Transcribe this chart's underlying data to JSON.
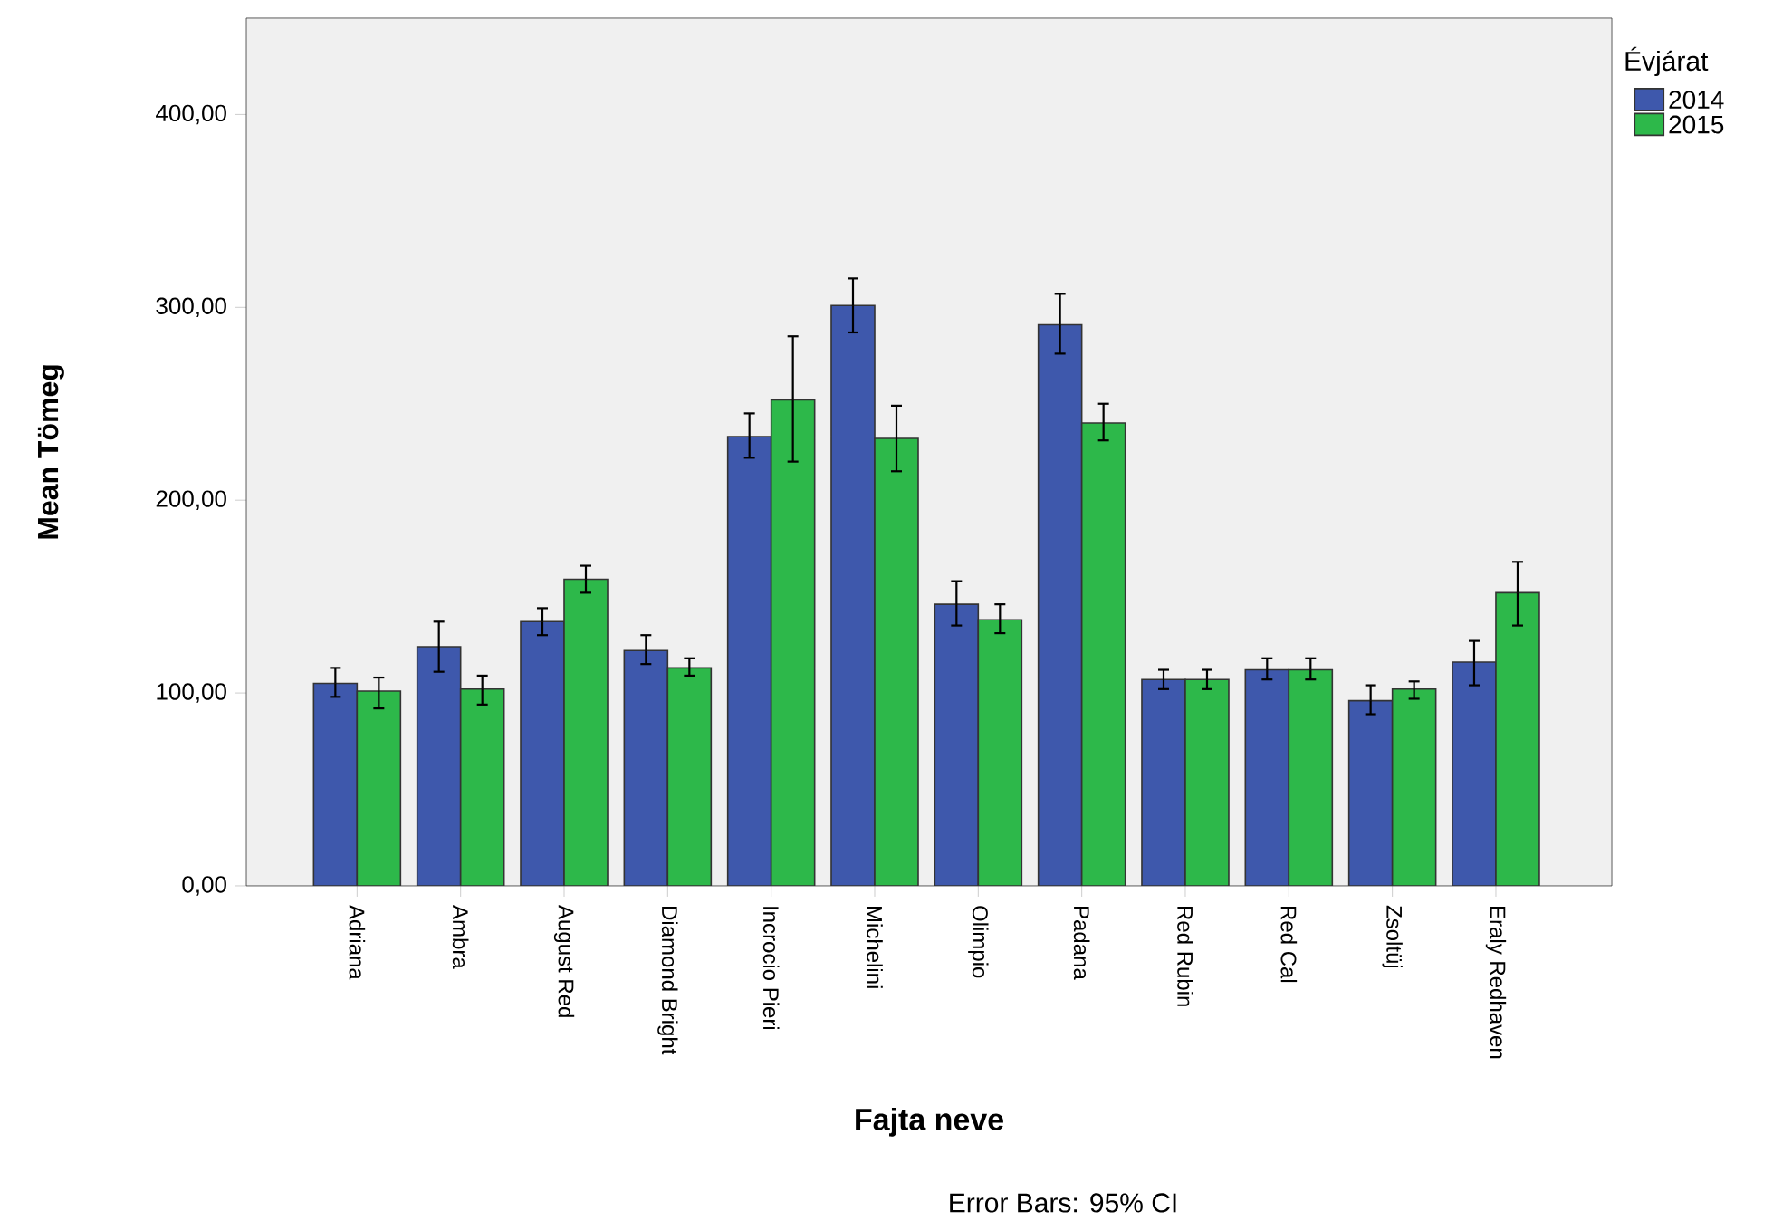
{
  "chart_data": {
    "type": "bar",
    "categories": [
      "Adriana",
      "Ambra",
      "August Red",
      "Diamond Bright",
      "Incrocio Pieri",
      "Michelini",
      "Olimpio",
      "Padana",
      "Red Rubin",
      "Red Cal",
      "Zsoltüj",
      "Eraly Redhaven"
    ],
    "series": [
      {
        "name": "2014",
        "color": "#3e58ac",
        "values": [
          105,
          124,
          137,
          122,
          233,
          301,
          146,
          291,
          107,
          112,
          96,
          116
        ],
        "errors": [
          [
            98,
            113
          ],
          [
            111,
            137
          ],
          [
            130,
            144
          ],
          [
            115,
            130
          ],
          [
            222,
            245
          ],
          [
            287,
            315
          ],
          [
            135,
            158
          ],
          [
            276,
            307
          ],
          [
            102,
            112
          ],
          [
            107,
            118
          ],
          [
            89,
            104
          ],
          [
            104,
            127
          ]
        ]
      },
      {
        "name": "2015",
        "color": "#2db84a",
        "values": [
          101,
          102,
          159,
          113,
          252,
          232,
          138,
          240,
          107,
          112,
          102,
          152
        ],
        "errors": [
          [
            92,
            108
          ],
          [
            94,
            109
          ],
          [
            152,
            166
          ],
          [
            109,
            118
          ],
          [
            220,
            285
          ],
          [
            215,
            249
          ],
          [
            131,
            146
          ],
          [
            231,
            250
          ],
          [
            102,
            112
          ],
          [
            107,
            118
          ],
          [
            97,
            106
          ],
          [
            135,
            168
          ]
        ]
      }
    ],
    "ylim": [
      0,
      450
    ],
    "yticks": [
      {
        "value": 0,
        "label": "0,00"
      },
      {
        "value": 100,
        "label": "100,00"
      },
      {
        "value": 200,
        "label": "200,00"
      },
      {
        "value": 300,
        "label": "300,00"
      },
      {
        "value": 400,
        "label": "400,00"
      }
    ],
    "xlabel": "Fajta neve",
    "ylabel": "Mean Tömeg",
    "legend_title": "Évjárat",
    "legend": "top right",
    "annotations": [
      "Error Bars: 95% CI"
    ]
  }
}
